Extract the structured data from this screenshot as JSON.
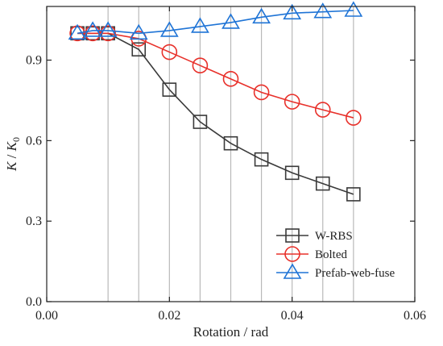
{
  "chart_data": {
    "type": "line",
    "xlabel": "Rotation / rad",
    "ylabel_parts": [
      "K",
      " / ",
      "K",
      "0"
    ],
    "xlim": [
      0.0,
      0.06
    ],
    "ylim": [
      0.0,
      1.1
    ],
    "xticks": [
      0.0,
      0.02,
      0.04,
      0.06
    ],
    "xtick_labels": [
      "0.00",
      "0.02",
      "0.04",
      "0.06"
    ],
    "yticks": [
      0.0,
      0.3,
      0.6,
      0.9
    ],
    "ytick_labels": [
      "0.0",
      "0.3",
      "0.6",
      "0.9"
    ],
    "vertical_gridlines_x": [
      0.01,
      0.015,
      0.02,
      0.025,
      0.03,
      0.035,
      0.04,
      0.045,
      0.05
    ],
    "legend_position": "bottom-right",
    "series": [
      {
        "name": "W-RBS",
        "color": "#3a3a3a",
        "marker": "square",
        "x": [
          0.005,
          0.0075,
          0.01,
          0.015,
          0.02,
          0.025,
          0.03,
          0.035,
          0.04,
          0.045,
          0.05
        ],
        "y": [
          1.0,
          1.0,
          1.0,
          0.94,
          0.79,
          0.67,
          0.59,
          0.53,
          0.48,
          0.44,
          0.4
        ]
      },
      {
        "name": "Bolted",
        "color": "#e8302a",
        "marker": "circle",
        "x": [
          0.005,
          0.0075,
          0.01,
          0.015,
          0.02,
          0.025,
          0.03,
          0.035,
          0.04,
          0.045,
          0.05
        ],
        "y": [
          1.0,
          1.0,
          1.0,
          0.98,
          0.93,
          0.88,
          0.83,
          0.78,
          0.745,
          0.715,
          0.685
        ]
      },
      {
        "name": "Prefab-web-fuse",
        "color": "#1f74d6",
        "marker": "triangle",
        "x": [
          0.005,
          0.0075,
          0.01,
          0.015,
          0.02,
          0.025,
          0.03,
          0.035,
          0.04,
          0.045,
          0.05
        ],
        "y": [
          1.0,
          1.01,
          1.01,
          1.0,
          1.01,
          1.025,
          1.04,
          1.06,
          1.075,
          1.08,
          1.085
        ]
      }
    ]
  }
}
